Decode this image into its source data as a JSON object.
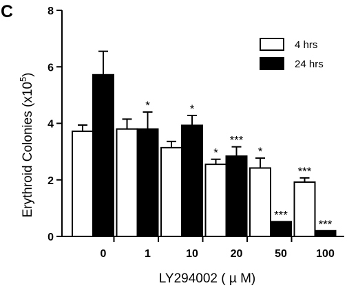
{
  "panel_label": "C",
  "chart_data": {
    "type": "bar",
    "title": "",
    "xlabel": "LY294002 ( µ M)",
    "ylabel_main": "Erythroid  Colonies (x10",
    "ylabel_exp": "5",
    "ylabel_close": ")",
    "ylim": [
      0,
      8
    ],
    "yticks": [
      "0",
      "2",
      "4",
      "6",
      "8"
    ],
    "categories": [
      "0",
      "1",
      "10",
      "20",
      "50",
      "100"
    ],
    "grid": false,
    "legend_position": "top-right",
    "colors": {
      "4 hrs": "#ffffff",
      "24 hrs": "#000000",
      "stroke": "#000000"
    },
    "series": [
      {
        "name": "4 hrs",
        "values": [
          3.72,
          3.8,
          3.14,
          2.55,
          2.42,
          1.92
        ],
        "errors": [
          0.22,
          0.35,
          0.22,
          0.18,
          0.35,
          0.15
        ],
        "significance": [
          "",
          "",
          "",
          "*",
          "*",
          "***"
        ]
      },
      {
        "name": "24 hrs",
        "values": [
          5.72,
          3.8,
          3.93,
          2.84,
          0.52,
          0.2
        ],
        "errors": [
          0.83,
          0.6,
          0.35,
          0.33,
          0,
          0
        ],
        "significance": [
          "",
          "*",
          "*",
          "***",
          "***",
          "***"
        ]
      }
    ]
  }
}
